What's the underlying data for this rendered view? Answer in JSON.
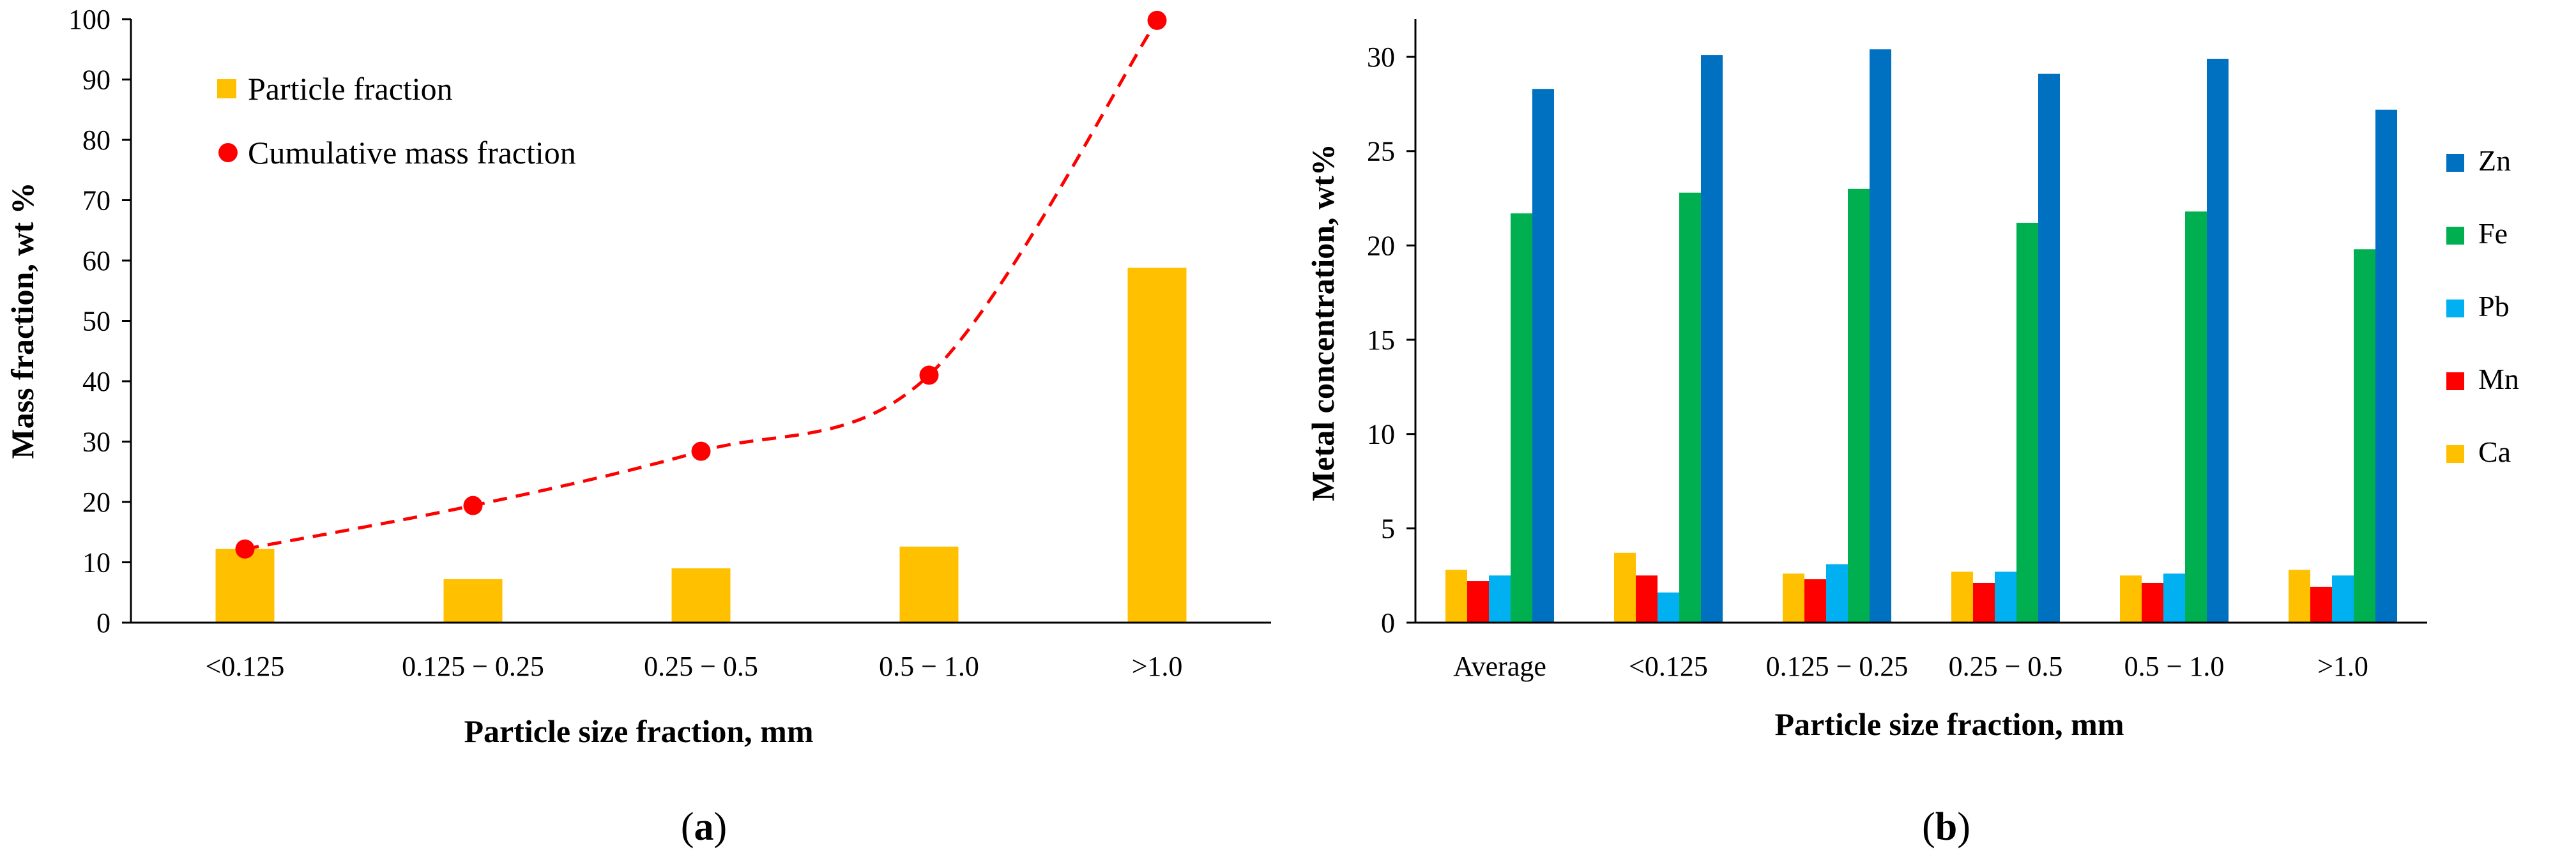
{
  "chart_data": [
    {
      "type": "bar",
      "panel": "a",
      "panel_label_open": "(",
      "panel_label_letter": "a",
      "panel_label_close": ")",
      "categories": [
        "<0.125",
        "0.125 − 0.25",
        "0.25 − 0.5",
        "0.5 − 1.0",
        ">1.0"
      ],
      "series": [
        {
          "name": "Particle fraction",
          "kind": "bar",
          "color": "#FFC000",
          "values": [
            12.2,
            7.2,
            9.0,
            12.6,
            58.8
          ]
        },
        {
          "name": "Cumulative mass fraction",
          "kind": "line-markers",
          "color": "#FF0000",
          "style": "dashed smooth",
          "values": [
            12.2,
            19.4,
            28.4,
            41.0,
            99.8
          ]
        }
      ],
      "xlabel": "Particle size fraction, mm",
      "ylabel": "Mass fraction, wt %",
      "ylim": [
        0,
        100
      ],
      "yticks": [
        "0",
        "10",
        "20",
        "30",
        "40",
        "50",
        "60",
        "70",
        "80",
        "90",
        "100"
      ],
      "grid": false,
      "legend_position": "top-left"
    },
    {
      "type": "bar",
      "panel": "b",
      "panel_label_open": "(",
      "panel_label_letter": "b",
      "panel_label_close": ")",
      "categories": [
        "Average",
        "<0.125",
        "0.125 − 0.25",
        "0.25 − 0.5",
        "0.5 − 1.0",
        ">1.0"
      ],
      "series": [
        {
          "name": "Ca",
          "color": "#FFC000",
          "values": [
            2.8,
            3.7,
            2.6,
            2.7,
            2.5,
            2.8
          ]
        },
        {
          "name": "Mn",
          "color": "#FF0000",
          "values": [
            2.2,
            2.5,
            2.3,
            2.1,
            2.1,
            1.9
          ]
        },
        {
          "name": "Pb",
          "color": "#00B0F0",
          "values": [
            2.5,
            1.6,
            3.1,
            2.7,
            2.6,
            2.5
          ]
        },
        {
          "name": "Fe",
          "color": "#00B050",
          "values": [
            21.7,
            22.8,
            23.0,
            21.2,
            21.8,
            19.8
          ]
        },
        {
          "name": "Zn",
          "color": "#0070C0",
          "values": [
            28.3,
            30.1,
            30.4,
            29.1,
            29.9,
            27.2
          ]
        }
      ],
      "legend_order": [
        "Zn",
        "Fe",
        "Pb",
        "Mn",
        "Ca"
      ],
      "xlabel": "Particle size fraction, mm",
      "ylabel": "Metal concentration, wt%",
      "ylim": [
        0,
        32
      ],
      "yticks": [
        "0",
        "5",
        "10",
        "15",
        "20",
        "25",
        "30"
      ],
      "grid": false,
      "legend_position": "right"
    }
  ]
}
